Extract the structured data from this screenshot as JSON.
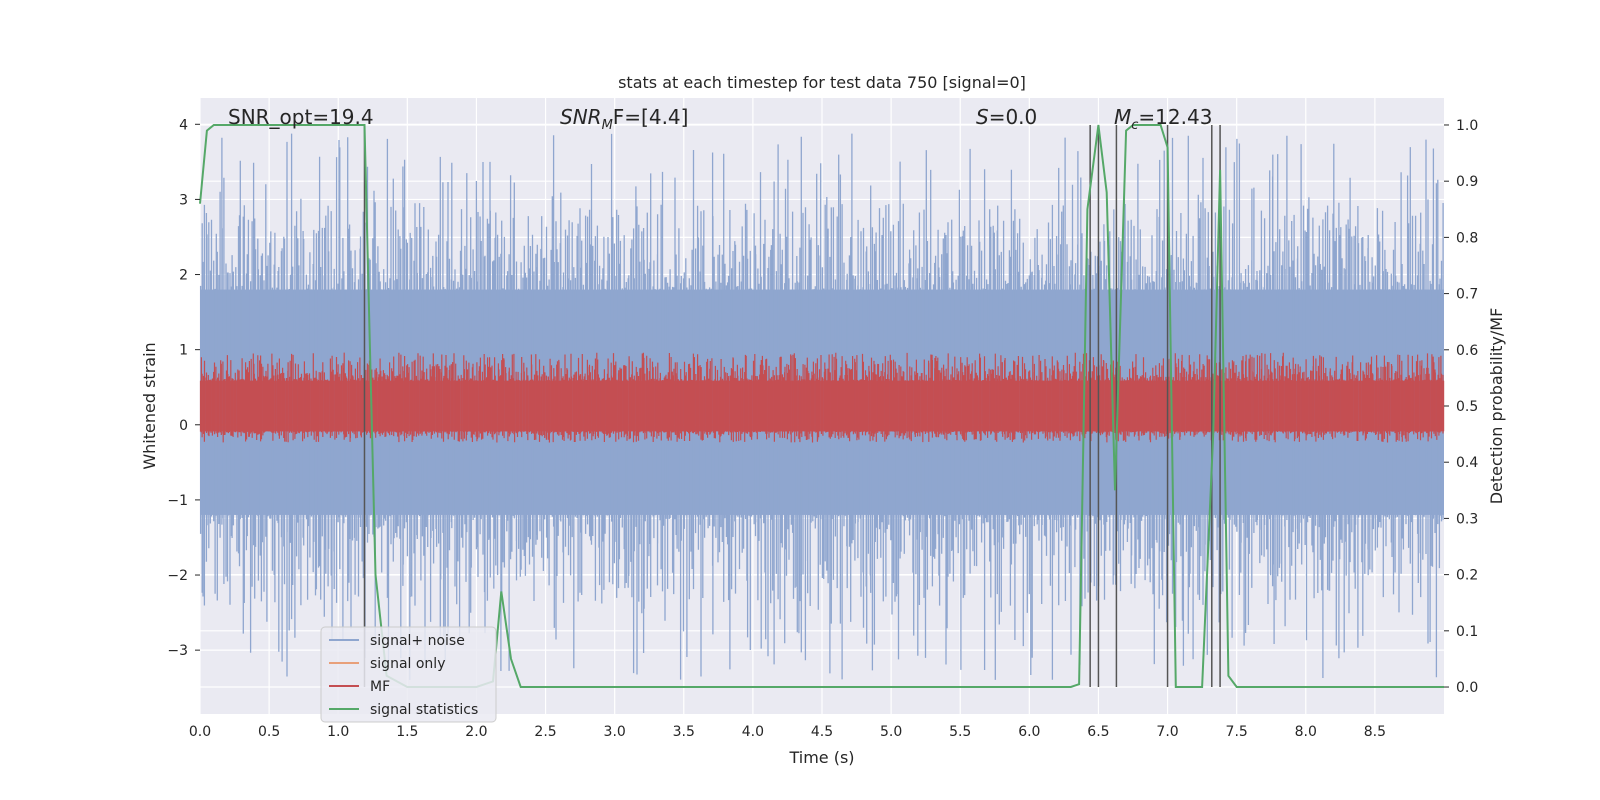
{
  "chart_data": {
    "type": "line",
    "title": "stats at each timestep for test data 750 [signal=0]",
    "xlabel": "Time (s)",
    "ylabel_left": "Whitened strain",
    "ylabel_right": "Detection probability/MF",
    "xlim": [
      0,
      9.0
    ],
    "ylim_left": [
      -3.85,
      4.35
    ],
    "ylim_right": [
      -0.048,
      1.048
    ],
    "xticks": [
      "0.0",
      "0.5",
      "1.0",
      "1.5",
      "2.0",
      "2.5",
      "3.0",
      "3.5",
      "4.0",
      "4.5",
      "5.0",
      "5.5",
      "6.0",
      "6.5",
      "7.0",
      "7.5",
      "8.0",
      "8.5"
    ],
    "yticks_left": [
      "−3",
      "−2",
      "−1",
      "0",
      "1",
      "2",
      "3",
      "4"
    ],
    "yticks_right": [
      "0.0",
      "0.1",
      "0.2",
      "0.3",
      "0.4",
      "0.5",
      "0.6",
      "0.7",
      "0.8",
      "0.9",
      "1.0"
    ],
    "grid": true,
    "legend_placement": "lower-left",
    "annotations": {
      "snr_opt": "SNR_opt=19.4",
      "snr_mf_base": "SNR",
      "snr_mf_sub": "M",
      "snr_mf_rest": "F=[4.4]",
      "s_base": "S",
      "s_rest": "=0.0",
      "mc_base": "M",
      "mc_sub": "c",
      "mc_rest": "=12.43"
    },
    "series": [
      {
        "name": "signal+ noise",
        "color": "#8fa6cf",
        "axis": "left",
        "kind": "noise",
        "band": [
          -1.2,
          1.8
        ],
        "spike_range": [
          -3.4,
          3.9
        ]
      },
      {
        "name": "signal only",
        "color": "#e8a07a",
        "axis": "left",
        "kind": "flat",
        "value": 0.0
      },
      {
        "name": "MF",
        "color": "#c44e52",
        "axis": "right",
        "kind": "noise",
        "band": [
          0.455,
          0.545
        ],
        "spike_max": 0.595
      },
      {
        "name": "signal statistics",
        "color": "#55a868",
        "axis": "right",
        "kind": "line",
        "x": [
          0,
          0.05,
          0.1,
          0.3,
          1.1,
          1.19,
          1.22,
          1.27,
          1.35,
          1.5,
          2.0,
          2.12,
          2.18,
          2.25,
          2.32,
          3.0,
          6.3,
          6.36,
          6.42,
          6.5,
          6.56,
          6.62,
          6.7,
          6.75,
          6.95,
          7.0,
          7.06,
          7.12,
          7.25,
          7.33,
          7.38,
          7.44,
          7.5,
          7.8,
          9.0
        ],
        "y": [
          0.86,
          0.99,
          1.0,
          1.0,
          1.0,
          1.0,
          0.7,
          0.2,
          0.02,
          0.0,
          0.0,
          0.01,
          0.17,
          0.05,
          0.0,
          0.0,
          0.0,
          0.005,
          0.85,
          1.0,
          0.88,
          0.35,
          0.99,
          1.0,
          1.0,
          0.96,
          0.0,
          0.0,
          0.0,
          0.45,
          0.92,
          0.02,
          0.0,
          0.0,
          0.0
        ]
      }
    ],
    "vlines": [
      1.19,
      6.44,
      6.5,
      6.63,
      7.0,
      7.32,
      7.38
    ]
  }
}
